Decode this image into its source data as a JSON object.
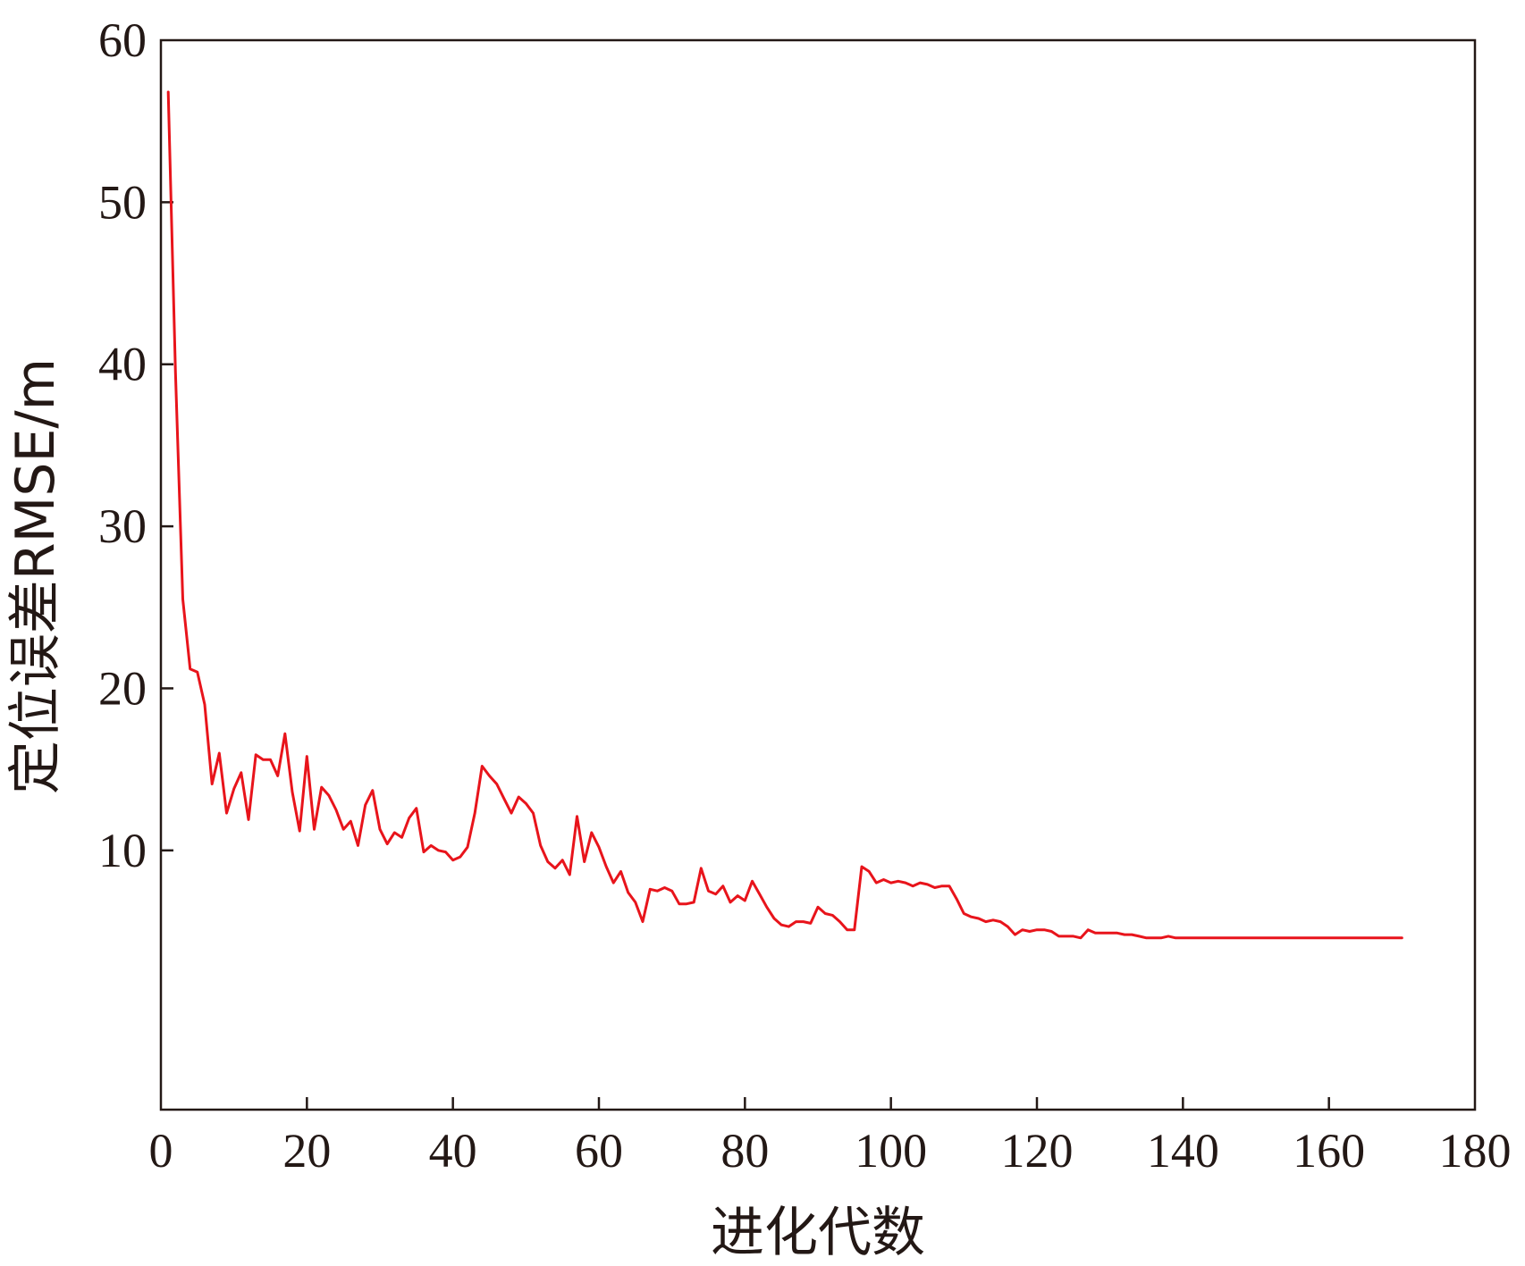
{
  "chart_data": {
    "type": "line",
    "title": "",
    "xlabel": "进化代数",
    "ylabel": "定位误差RMSE/m",
    "xlim": [
      0,
      180
    ],
    "ylim": [
      -6,
      60
    ],
    "x_ticks": [
      0,
      20,
      40,
      60,
      80,
      100,
      120,
      140,
      160,
      180
    ],
    "y_ticks": [
      10,
      20,
      30,
      40,
      50,
      60
    ],
    "x_tick_labels": [
      "0",
      "20",
      "40",
      "60",
      "80",
      "100",
      "120",
      "140",
      "160",
      "180"
    ],
    "y_tick_labels": [
      "10",
      "20",
      "30",
      "40",
      "50",
      "60"
    ],
    "grid": false,
    "line_color": "#e8141b",
    "series": [
      {
        "values": [
          [
            1,
            56.8
          ],
          [
            2,
            39.5
          ],
          [
            3,
            25.5
          ],
          [
            4,
            21.2
          ],
          [
            5,
            21.0
          ],
          [
            6,
            19.0
          ],
          [
            7,
            14.1
          ],
          [
            8,
            16.0
          ],
          [
            9,
            12.3
          ],
          [
            10,
            13.8
          ],
          [
            11,
            14.8
          ],
          [
            12,
            11.9
          ],
          [
            13,
            15.9
          ],
          [
            14,
            15.6
          ],
          [
            15,
            15.6
          ],
          [
            16,
            14.6
          ],
          [
            17,
            17.2
          ],
          [
            18,
            13.6
          ],
          [
            19,
            11.2
          ],
          [
            20,
            15.8
          ],
          [
            21,
            11.3
          ],
          [
            22,
            13.9
          ],
          [
            23,
            13.4
          ],
          [
            24,
            12.5
          ],
          [
            25,
            11.3
          ],
          [
            26,
            11.8
          ],
          [
            27,
            10.3
          ],
          [
            28,
            12.8
          ],
          [
            29,
            13.7
          ],
          [
            30,
            11.3
          ],
          [
            31,
            10.4
          ],
          [
            32,
            11.1
          ],
          [
            33,
            10.8
          ],
          [
            34,
            12.0
          ],
          [
            35,
            12.6
          ],
          [
            36,
            9.9
          ],
          [
            37,
            10.3
          ],
          [
            38,
            10.0
          ],
          [
            39,
            9.9
          ],
          [
            40,
            9.4
          ],
          [
            41,
            9.6
          ],
          [
            42,
            10.2
          ],
          [
            43,
            12.3
          ],
          [
            44,
            15.2
          ],
          [
            45,
            14.6
          ],
          [
            46,
            14.1
          ],
          [
            47,
            13.2
          ],
          [
            48,
            12.3
          ],
          [
            49,
            13.3
          ],
          [
            50,
            12.9
          ],
          [
            51,
            12.3
          ],
          [
            52,
            10.3
          ],
          [
            53,
            9.3
          ],
          [
            54,
            8.9
          ],
          [
            55,
            9.4
          ],
          [
            56,
            8.5
          ],
          [
            57,
            12.1
          ],
          [
            58,
            9.3
          ],
          [
            59,
            11.1
          ],
          [
            60,
            10.2
          ],
          [
            61,
            9.0
          ],
          [
            62,
            8.0
          ],
          [
            63,
            8.7
          ],
          [
            64,
            7.4
          ],
          [
            65,
            6.8
          ],
          [
            66,
            5.6
          ],
          [
            67,
            7.6
          ],
          [
            68,
            7.5
          ],
          [
            69,
            7.7
          ],
          [
            70,
            7.5
          ],
          [
            71,
            6.7
          ],
          [
            72,
            6.7
          ],
          [
            73,
            6.8
          ],
          [
            74,
            8.9
          ],
          [
            75,
            7.5
          ],
          [
            76,
            7.3
          ],
          [
            77,
            7.8
          ],
          [
            78,
            6.8
          ],
          [
            79,
            7.2
          ],
          [
            80,
            6.9
          ],
          [
            81,
            8.1
          ],
          [
            82,
            7.3
          ],
          [
            83,
            6.5
          ],
          [
            84,
            5.8
          ],
          [
            85,
            5.4
          ],
          [
            86,
            5.3
          ],
          [
            87,
            5.6
          ],
          [
            88,
            5.6
          ],
          [
            89,
            5.5
          ],
          [
            90,
            6.5
          ],
          [
            91,
            6.1
          ],
          [
            92,
            6.0
          ],
          [
            93,
            5.6
          ],
          [
            94,
            5.1
          ],
          [
            95,
            5.1
          ],
          [
            96,
            9.0
          ],
          [
            97,
            8.7
          ],
          [
            98,
            8.0
          ],
          [
            99,
            8.2
          ],
          [
            100,
            8.0
          ],
          [
            101,
            8.1
          ],
          [
            102,
            8.0
          ],
          [
            103,
            7.8
          ],
          [
            104,
            8.0
          ],
          [
            105,
            7.9
          ],
          [
            106,
            7.7
          ],
          [
            107,
            7.8
          ],
          [
            108,
            7.8
          ],
          [
            109,
            7.0
          ],
          [
            110,
            6.1
          ],
          [
            111,
            5.9
          ],
          [
            112,
            5.8
          ],
          [
            113,
            5.6
          ],
          [
            114,
            5.7
          ],
          [
            115,
            5.6
          ],
          [
            116,
            5.3
          ],
          [
            117,
            4.8
          ],
          [
            118,
            5.1
          ],
          [
            119,
            5.0
          ],
          [
            120,
            5.1
          ],
          [
            121,
            5.1
          ],
          [
            122,
            5.0
          ],
          [
            123,
            4.7
          ],
          [
            124,
            4.7
          ],
          [
            125,
            4.7
          ],
          [
            126,
            4.6
          ],
          [
            127,
            5.1
          ],
          [
            128,
            4.9
          ],
          [
            129,
            4.9
          ],
          [
            130,
            4.9
          ],
          [
            131,
            4.9
          ],
          [
            132,
            4.8
          ],
          [
            133,
            4.8
          ],
          [
            134,
            4.7
          ],
          [
            135,
            4.6
          ],
          [
            136,
            4.6
          ],
          [
            137,
            4.6
          ],
          [
            138,
            4.7
          ],
          [
            139,
            4.6
          ],
          [
            140,
            4.6
          ],
          [
            145,
            4.6
          ],
          [
            150,
            4.6
          ],
          [
            155,
            4.6
          ],
          [
            160,
            4.6
          ],
          [
            165,
            4.6
          ],
          [
            170,
            4.6
          ]
        ]
      }
    ]
  }
}
